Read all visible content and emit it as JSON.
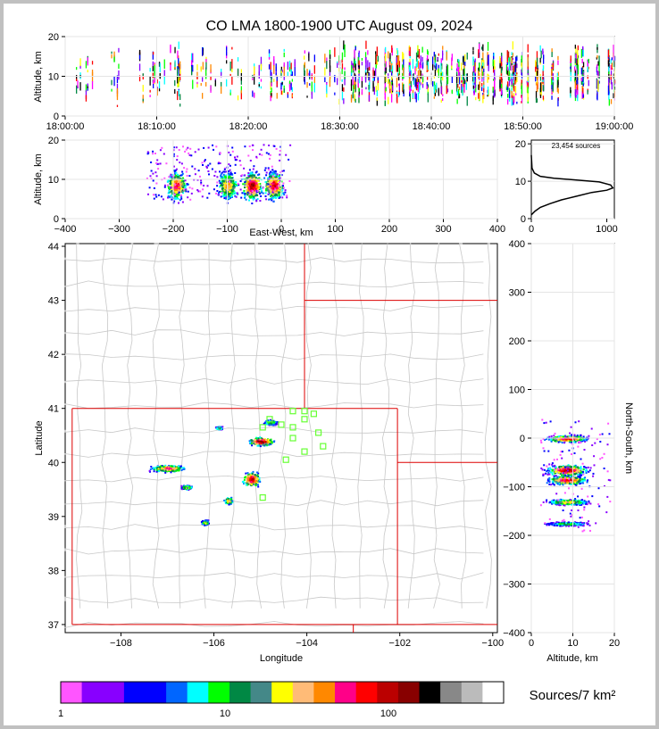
{
  "title": "CO LMA 1800-1900 UTC August 09, 2024",
  "panels": {
    "time_height": {
      "ylabel": "Altitude, km",
      "xticks": [
        "18:00:00",
        "18:10:00",
        "18:20:00",
        "18:30:00",
        "18:40:00",
        "18:50:00",
        "19:00:00"
      ],
      "yticks": [
        "0",
        "10",
        "20"
      ]
    },
    "ew_height": {
      "ylabel": "Altitude, km",
      "xlabel": "East-West, km",
      "xticks": [
        "−400",
        "−300",
        "−200",
        "−100",
        "0",
        "100",
        "200",
        "300",
        "400"
      ],
      "yticks": [
        "0",
        "10",
        "20"
      ]
    },
    "histogram": {
      "annotation": "23,454 sources",
      "xticks": [
        "0",
        "1000"
      ],
      "yticks": [
        "0",
        "10",
        "20"
      ]
    },
    "map": {
      "xlabel": "Longitude",
      "ylabel": "Latitude",
      "xticks": [
        "−108",
        "−106",
        "−104",
        "−102",
        "−100"
      ],
      "yticks": [
        "37",
        "38",
        "39",
        "40",
        "41",
        "42",
        "43",
        "44"
      ]
    },
    "ns_height": {
      "xlabel": "Altitude, km",
      "ylabel": "North-South, km",
      "xticks": [
        "0",
        "10",
        "20"
      ],
      "yticks": [
        "400",
        "300",
        "200",
        "100",
        "0",
        "−100",
        "−200",
        "−300",
        "−400"
      ]
    }
  },
  "colorbar": {
    "label": "Sources/7 km²",
    "ticks": [
      "1",
      "10",
      "100"
    ],
    "colors": [
      "#ff55ff",
      "#8800ff",
      "#0000ff",
      "#0066ff",
      "#00ffff",
      "#00ff00",
      "#008844",
      "#448888",
      "#ffff00",
      "#ffbb77",
      "#ff8800",
      "#ff0088",
      "#ff0000",
      "#bb0000",
      "#880000",
      "#000000",
      "#888888",
      "#bbbbbb",
      "#ffffff"
    ]
  },
  "chart_data": [
    {
      "type": "scatter",
      "panel": "altitude vs time",
      "xlabel": "",
      "ylabel": "Altitude, km",
      "xlim": [
        "18:00:00",
        "19:00:00"
      ],
      "ylim": [
        0,
        20
      ],
      "source_altitude_km": [
        2,
        17
      ],
      "peak_altitude_km": 9
    },
    {
      "type": "heatmap",
      "panel": "altitude vs east-west",
      "xlabel": "East-West, km",
      "ylabel": "Altitude, km",
      "xlim": [
        -400,
        400
      ],
      "ylim": [
        0,
        20
      ],
      "dense_cells_x_km": [
        -195,
        -100,
        -55,
        -15
      ]
    },
    {
      "type": "line",
      "panel": "source count by altitude",
      "xlim": [
        0,
        1100
      ],
      "ylim": [
        0,
        21
      ],
      "total_sources": 23454,
      "x": [
        0,
        50,
        120,
        250,
        400,
        600,
        800,
        1000,
        1080,
        1050,
        900,
        600,
        300,
        120,
        40,
        10,
        0
      ],
      "y": [
        1,
        2,
        3,
        4,
        5,
        6,
        7,
        7.6,
        8.2,
        9,
        9.8,
        10.3,
        10.8,
        11.3,
        12.2,
        13.5,
        17
      ]
    },
    {
      "type": "scatter",
      "panel": "plan view map",
      "xlabel": "Longitude",
      "ylabel": "Latitude",
      "xlim": [
        -109.2,
        -99.9
      ],
      "ylim": [
        36.85,
        44.05
      ],
      "source_clusters_lonlat": [
        [
          -105.0,
          40.4
        ],
        [
          -107.0,
          39.9
        ],
        [
          -105.2,
          39.7
        ],
        [
          -106.6,
          39.55
        ],
        [
          -105.7,
          39.3
        ],
        [
          -106.2,
          38.9
        ],
        [
          -104.8,
          40.75
        ],
        [
          -105.9,
          40.65
        ]
      ],
      "station_lonlat": [
        [
          -104.8,
          40.8
        ],
        [
          -104.55,
          40.7
        ],
        [
          -104.3,
          40.95
        ],
        [
          -104.05,
          40.8
        ],
        [
          -104.05,
          40.95
        ],
        [
          -103.85,
          40.9
        ],
        [
          -104.95,
          40.65
        ],
        [
          -104.3,
          40.65
        ],
        [
          -104.3,
          40.45
        ],
        [
          -103.75,
          40.55
        ],
        [
          -103.65,
          40.3
        ],
        [
          -104.05,
          40.2
        ],
        [
          -104.45,
          40.05
        ],
        [
          -104.95,
          39.35
        ]
      ]
    },
    {
      "type": "heatmap",
      "panel": "north-south vs altitude",
      "xlabel": "Altitude, km",
      "ylabel": "North-South, km",
      "xlim": [
        0,
        20
      ],
      "ylim": [
        -400,
        400
      ],
      "dense_cells_y_km": [
        0,
        -65,
        -85,
        -130,
        -175
      ]
    }
  ]
}
